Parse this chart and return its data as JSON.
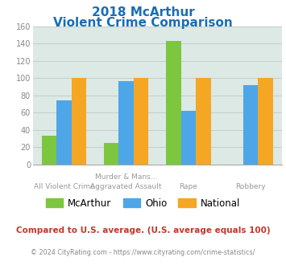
{
  "title_line1": "2018 McArthur",
  "title_line2": "Violent Crime Comparison",
  "cat_labels_top": [
    "",
    "Murder & Mans...",
    "",
    ""
  ],
  "cat_labels_bottom": [
    "All Violent Crime",
    "Aggravated Assault",
    "Rape",
    "Robbery"
  ],
  "series": {
    "McArthur": [
      33,
      25,
      143,
      0
    ],
    "Ohio": [
      74,
      97,
      62,
      92
    ],
    "National": [
      100,
      100,
      100,
      100
    ]
  },
  "colors": {
    "McArthur": "#7dc63f",
    "Ohio": "#4da6e8",
    "National": "#f5a623"
  },
  "ylim": [
    0,
    160
  ],
  "yticks": [
    0,
    20,
    40,
    60,
    80,
    100,
    120,
    140,
    160
  ],
  "plot_bg": "#dce9e4",
  "title_color": "#1a6db5",
  "footer_text": "Compared to U.S. average. (U.S. average equals 100)",
  "footer_color": "#c0392b",
  "copyright_text": "© 2024 CityRating.com - https://www.cityrating.com/crime-statistics/",
  "copyright_color": "#888888",
  "grid_color": "#c0d0cc",
  "label_color": "#999999",
  "tick_color": "#888888"
}
